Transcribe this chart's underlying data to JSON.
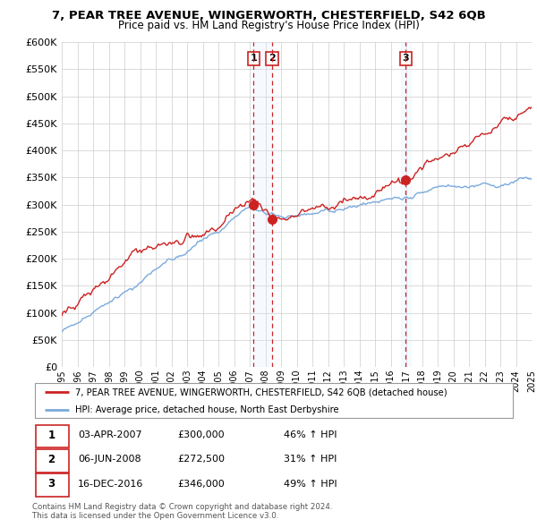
{
  "title_line1": "7, PEAR TREE AVENUE, WINGERWORTH, CHESTERFIELD, S42 6QB",
  "title_line2": "Price paid vs. HM Land Registry's House Price Index (HPI)",
  "ylabel_values": [
    "£0",
    "£50K",
    "£100K",
    "£150K",
    "£200K",
    "£250K",
    "£300K",
    "£350K",
    "£400K",
    "£450K",
    "£500K",
    "£550K",
    "£600K"
  ],
  "ylim": [
    0,
    600000
  ],
  "yticks": [
    0,
    50000,
    100000,
    150000,
    200000,
    250000,
    300000,
    350000,
    400000,
    450000,
    500000,
    550000,
    600000
  ],
  "xmin_year": 1995,
  "xmax_year": 2025,
  "xticks": [
    1995,
    1996,
    1997,
    1998,
    1999,
    2000,
    2001,
    2002,
    2003,
    2004,
    2005,
    2006,
    2007,
    2008,
    2009,
    2010,
    2011,
    2012,
    2013,
    2014,
    2015,
    2016,
    2017,
    2018,
    2019,
    2020,
    2021,
    2022,
    2023,
    2024,
    2025
  ],
  "sale_dates": [
    2007.25,
    2008.43,
    2016.96
  ],
  "sale_prices": [
    300000,
    272500,
    346000
  ],
  "sale_labels": [
    "1",
    "2",
    "3"
  ],
  "red_line_color": "#cc2222",
  "blue_line_color": "#7aaadd",
  "vline_color": "#cc2222",
  "shade_color": "#ddeeff",
  "grid_color": "#cccccc",
  "bg_color": "#ffffff",
  "legend_line1": "7, PEAR TREE AVENUE, WINGERWORTH, CHESTERFIELD, S42 6QB (detached house)",
  "legend_line2": "HPI: Average price, detached house, North East Derbyshire",
  "table_data": [
    [
      "1",
      "03-APR-2007",
      "£300,000",
      "46% ↑ HPI"
    ],
    [
      "2",
      "06-JUN-2008",
      "£272,500",
      "31% ↑ HPI"
    ],
    [
      "3",
      "16-DEC-2016",
      "£346,000",
      "49% ↑ HPI"
    ]
  ],
  "footnote_line1": "Contains HM Land Registry data © Crown copyright and database right 2024.",
  "footnote_line2": "This data is licensed under the Open Government Licence v3.0."
}
